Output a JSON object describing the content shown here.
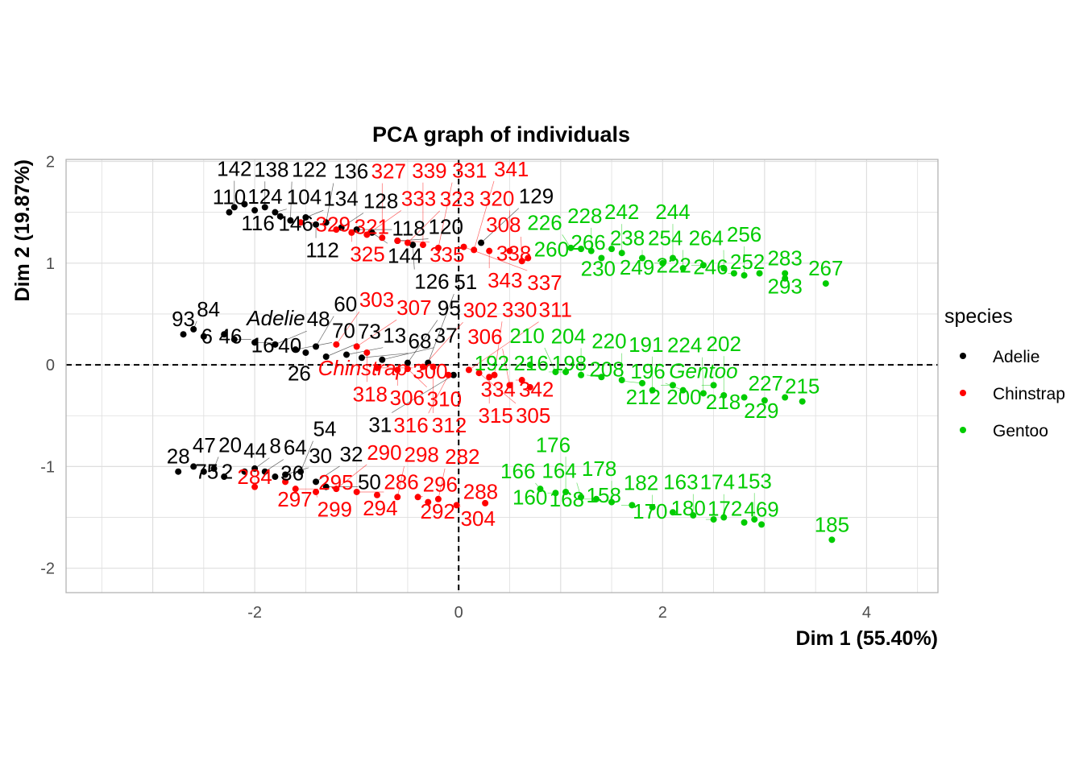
{
  "chart_data": {
    "type": "scatter",
    "title": "PCA graph of individuals",
    "xlabel": "Dim 1 (55.40%)",
    "ylabel": "Dim 2 (19.87%)",
    "xlim": [
      -3.85,
      4.7
    ],
    "ylim": [
      -2.24,
      2.02
    ],
    "xticks": [
      -2,
      0,
      2,
      4
    ],
    "yticks": [
      -2,
      -1,
      0,
      1,
      2
    ],
    "grid": true,
    "reference_lines": {
      "x": 0,
      "y": 0
    },
    "legend": {
      "title": "species",
      "placement": "right"
    },
    "series": [
      {
        "name": "Adelie",
        "color": "#000000",
        "mean": [
          -1.8,
          0.42
        ],
        "points": [
          [
            -2.2,
            1.55,
            "142"
          ],
          [
            -2.25,
            1.5,
            "110"
          ],
          [
            -2.1,
            1.58,
            "124"
          ],
          [
            -2.0,
            1.52,
            "116"
          ],
          [
            -1.9,
            1.55,
            "138"
          ],
          [
            -1.8,
            1.5,
            "104"
          ],
          [
            -1.75,
            1.46,
            "146"
          ],
          [
            -1.65,
            1.42,
            "122"
          ],
          [
            -1.5,
            1.45,
            "134"
          ],
          [
            -1.4,
            1.38,
            "112"
          ],
          [
            -1.3,
            1.4,
            "136"
          ],
          [
            -1.15,
            1.35,
            "128"
          ],
          [
            -1.0,
            1.33,
            "118"
          ],
          [
            -0.85,
            1.3,
            "144"
          ],
          [
            -0.6,
            1.22,
            "120"
          ],
          [
            -0.45,
            1.18,
            "126"
          ],
          [
            0.22,
            1.2,
            "129"
          ],
          [
            -2.7,
            0.3,
            "93"
          ],
          [
            -2.6,
            0.35,
            "84"
          ],
          [
            -2.5,
            0.28,
            "6"
          ],
          [
            -2.3,
            0.3,
            "46"
          ],
          [
            -2.2,
            0.25,
            "16"
          ],
          [
            -2.0,
            0.22,
            "40"
          ],
          [
            -1.8,
            0.2,
            "48"
          ],
          [
            -1.6,
            0.15,
            "70"
          ],
          [
            -1.5,
            0.12,
            "26"
          ],
          [
            -1.4,
            0.18,
            "60"
          ],
          [
            -1.3,
            0.08,
            "73"
          ],
          [
            -1.1,
            0.1,
            "13"
          ],
          [
            -0.95,
            0.07,
            "68"
          ],
          [
            -0.75,
            0.05,
            "37"
          ],
          [
            -0.5,
            0.02,
            "95"
          ],
          [
            -0.3,
            0.02,
            "51"
          ],
          [
            -0.05,
            -0.1,
            "31"
          ],
          [
            -2.75,
            -1.05,
            "28"
          ],
          [
            -2.6,
            -1.0,
            "47"
          ],
          [
            -2.5,
            -1.05,
            "75"
          ],
          [
            -2.4,
            -1.02,
            "20"
          ],
          [
            -2.3,
            -1.1,
            "2"
          ],
          [
            -2.1,
            -1.05,
            "44"
          ],
          [
            -2.0,
            -1.02,
            "8"
          ],
          [
            -1.9,
            -1.05,
            "64"
          ],
          [
            -1.8,
            -1.1,
            "36"
          ],
          [
            -1.7,
            -1.08,
            "30"
          ],
          [
            -1.55,
            -1.05,
            "54"
          ],
          [
            -1.4,
            -1.15,
            "32"
          ],
          [
            -1.3,
            -1.2,
            "50"
          ]
        ]
      },
      {
        "name": "Chinstrap",
        "color": "#ff0000",
        "mean": [
          -0.94,
          -0.07
        ],
        "points": [
          [
            -1.55,
            1.4,
            "329"
          ],
          [
            -1.2,
            1.33,
            "321"
          ],
          [
            -1.05,
            1.3,
            "325"
          ],
          [
            -0.9,
            1.28,
            "333"
          ],
          [
            -0.75,
            1.25,
            "327"
          ],
          [
            -0.6,
            1.22,
            "335"
          ],
          [
            -0.5,
            1.2,
            "323"
          ],
          [
            -0.35,
            1.18,
            "339"
          ],
          [
            -0.2,
            1.15,
            "331"
          ],
          [
            0.05,
            1.16,
            "337"
          ],
          [
            0.15,
            1.13,
            "341"
          ],
          [
            0.3,
            1.12,
            "343"
          ],
          [
            0.5,
            1.12,
            "320"
          ],
          [
            0.62,
            1.02,
            "308"
          ],
          [
            0.68,
            1.05,
            "338"
          ],
          [
            -1.2,
            0.2,
            "303"
          ],
          [
            -1.0,
            0.18,
            "307"
          ],
          [
            -0.9,
            0.12,
            "318"
          ],
          [
            -0.8,
            -0.03,
            "300"
          ],
          [
            -0.6,
            -0.05,
            "306"
          ],
          [
            -0.5,
            -0.04,
            "310"
          ],
          [
            -0.35,
            -0.02,
            "302"
          ],
          [
            -0.25,
            -0.02,
            "312"
          ],
          [
            -0.1,
            -0.1,
            "316"
          ],
          [
            0.1,
            -0.05,
            "311"
          ],
          [
            0.2,
            -0.08,
            "305"
          ],
          [
            0.3,
            -0.12,
            "315"
          ],
          [
            0.35,
            -0.1,
            "330"
          ],
          [
            0.5,
            -0.2,
            "306"
          ],
          [
            0.62,
            -0.15,
            "334"
          ],
          [
            0.7,
            -0.22,
            "342"
          ],
          [
            -2.0,
            -1.2,
            "284"
          ],
          [
            -1.7,
            -1.15,
            "297"
          ],
          [
            -1.6,
            -1.22,
            "295"
          ],
          [
            -1.4,
            -1.25,
            "299"
          ],
          [
            -1.2,
            -1.22,
            "290"
          ],
          [
            -1.0,
            -1.25,
            "286"
          ],
          [
            -0.8,
            -1.28,
            "294"
          ],
          [
            -0.6,
            -1.3,
            "298"
          ],
          [
            -0.4,
            -1.3,
            "296"
          ],
          [
            -0.3,
            -1.35,
            "292"
          ],
          [
            -0.2,
            -1.32,
            "282"
          ],
          [
            -0.02,
            -1.38,
            "304"
          ],
          [
            0.26,
            -1.36,
            "288"
          ]
        ]
      },
      {
        "name": "Gentoo",
        "color": "#00cc00",
        "mean": [
          2.4,
          -0.1
        ],
        "points": [
          [
            1.1,
            1.15,
            "226"
          ],
          [
            1.2,
            1.14,
            "260"
          ],
          [
            1.3,
            1.12,
            "228"
          ],
          [
            1.4,
            1.05,
            "230"
          ],
          [
            1.5,
            1.14,
            "266"
          ],
          [
            1.6,
            1.1,
            "242"
          ],
          [
            1.8,
            1.05,
            "238"
          ],
          [
            2.0,
            1.0,
            "249"
          ],
          [
            2.1,
            1.05,
            "244"
          ],
          [
            2.2,
            0.95,
            "254"
          ],
          [
            2.4,
            0.98,
            "222"
          ],
          [
            2.6,
            0.95,
            "264"
          ],
          [
            2.7,
            0.9,
            "246"
          ],
          [
            2.8,
            0.88,
            "256"
          ],
          [
            2.95,
            0.9,
            "252"
          ],
          [
            3.2,
            0.9,
            "283"
          ],
          [
            3.2,
            0.85,
            "293"
          ],
          [
            3.6,
            0.8,
            "267"
          ],
          [
            0.7,
            0.0,
            "192"
          ],
          [
            0.95,
            -0.07,
            "210"
          ],
          [
            1.05,
            -0.07,
            "216"
          ],
          [
            1.2,
            -0.1,
            "204"
          ],
          [
            1.4,
            -0.12,
            "198"
          ],
          [
            1.6,
            -0.15,
            "220"
          ],
          [
            1.8,
            -0.18,
            "208"
          ],
          [
            1.9,
            -0.25,
            "191"
          ],
          [
            2.1,
            -0.2,
            "212"
          ],
          [
            2.2,
            -0.25,
            "196"
          ],
          [
            2.4,
            -0.28,
            "224"
          ],
          [
            2.5,
            -0.2,
            "200"
          ],
          [
            2.6,
            -0.3,
            "202"
          ],
          [
            2.8,
            -0.32,
            "218"
          ],
          [
            3.0,
            -0.35,
            "229"
          ],
          [
            3.2,
            -0.32,
            "227"
          ],
          [
            3.37,
            -0.36,
            "215"
          ],
          [
            0.8,
            -1.22,
            "166"
          ],
          [
            0.95,
            -1.26,
            "160"
          ],
          [
            1.05,
            -1.25,
            "176"
          ],
          [
            1.2,
            -1.3,
            "164"
          ],
          [
            1.35,
            -1.32,
            "168"
          ],
          [
            1.5,
            -1.35,
            "178"
          ],
          [
            1.7,
            -1.38,
            "158"
          ],
          [
            1.9,
            -1.4,
            "182"
          ],
          [
            2.1,
            -1.45,
            "170"
          ],
          [
            2.3,
            -1.48,
            "163"
          ],
          [
            2.5,
            -1.52,
            "180"
          ],
          [
            2.6,
            -1.5,
            "174"
          ],
          [
            2.8,
            -1.55,
            "172"
          ],
          [
            2.9,
            -1.52,
            "153"
          ],
          [
            2.97,
            -1.57,
            "469"
          ],
          [
            3.66,
            -1.72,
            "185"
          ]
        ]
      }
    ]
  }
}
